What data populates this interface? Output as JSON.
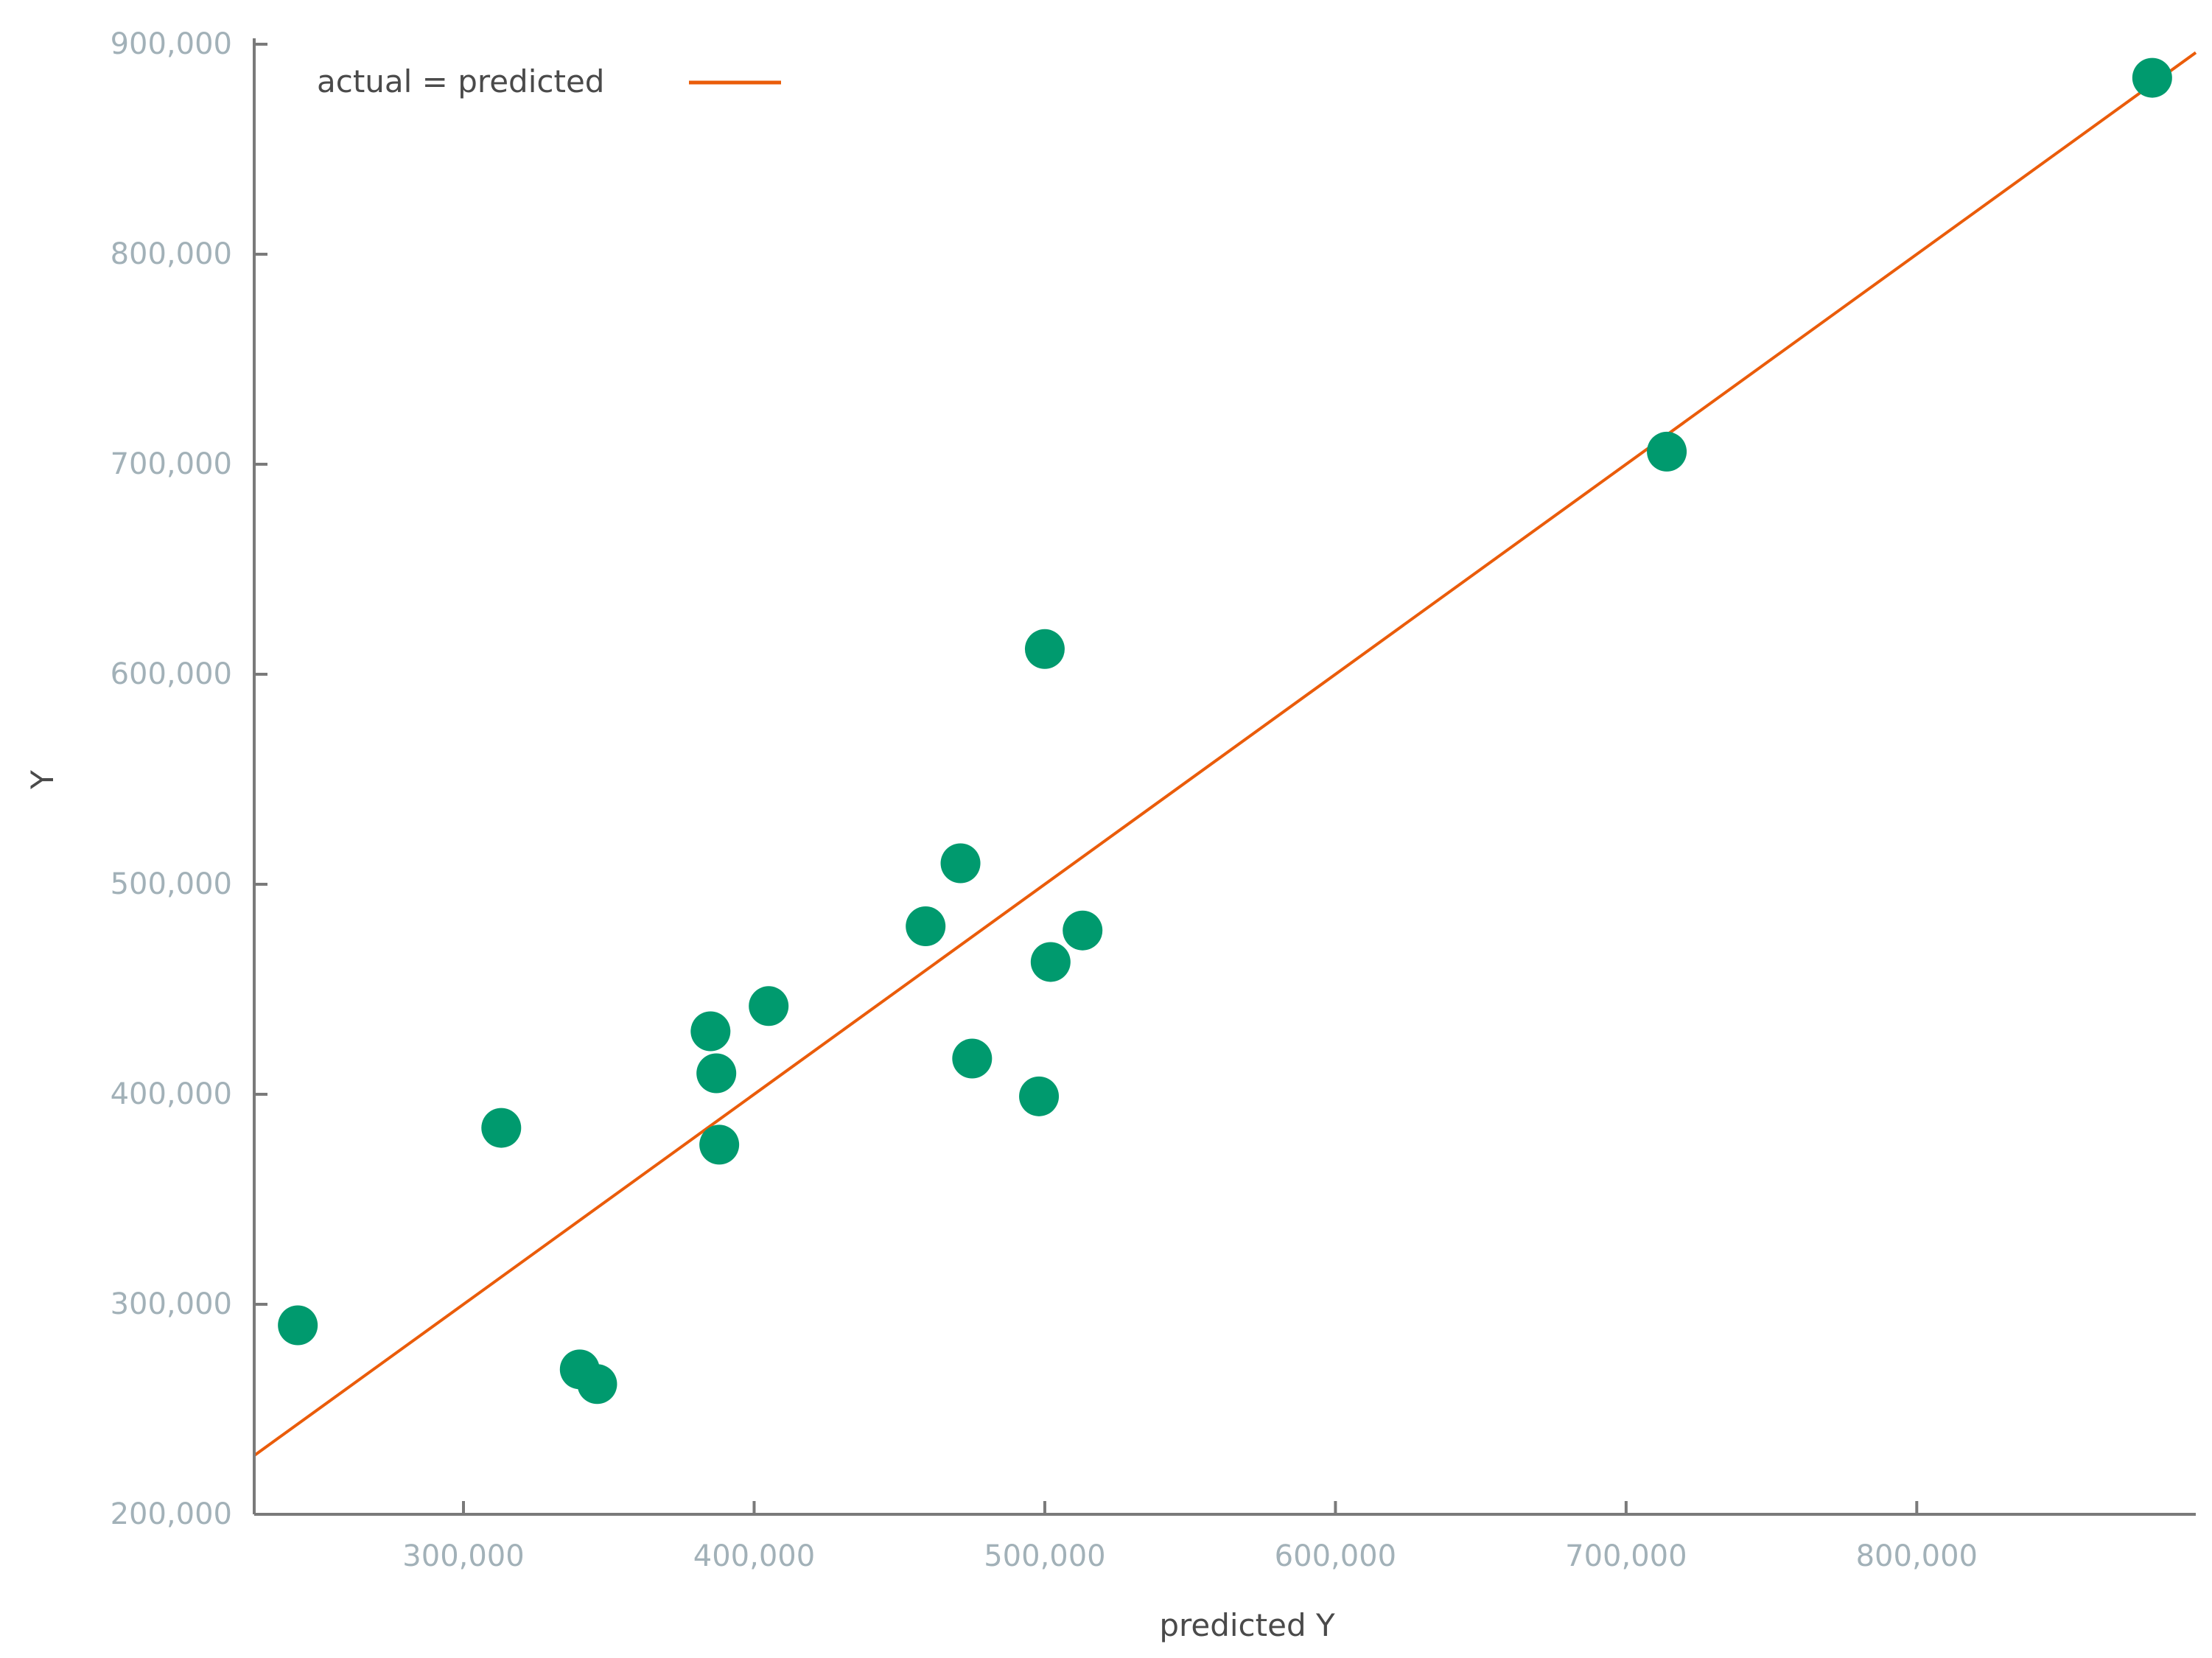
{
  "chart_data": {
    "type": "scatter",
    "title": "",
    "xlabel": "predicted Y",
    "ylabel": "Y",
    "xlim": [
      228000,
      896000
    ],
    "ylim": [
      200000,
      900000
    ],
    "x_ticks": [
      300000,
      400000,
      500000,
      600000,
      700000,
      800000
    ],
    "x_tick_labels": [
      "300,000",
      "400,000",
      "500,000",
      "600,000",
      "700,000",
      "800,000"
    ],
    "y_ticks": [
      200000,
      300000,
      400000,
      500000,
      600000,
      700000,
      800000,
      900000
    ],
    "y_tick_labels": [
      "200,000",
      "300,000",
      "400,000",
      "500,000",
      "600,000",
      "700,000",
      "800,000",
      "900,000"
    ],
    "grid": false,
    "legend": {
      "position": "top-left",
      "entries": [
        "actual = predicted"
      ]
    },
    "colors": {
      "points": "#009a6e",
      "line": "#ea5c0a",
      "axis": "#7a7a7a"
    },
    "series": [
      {
        "kind": "points",
        "x": [
          243000,
          313000,
          340000,
          346000,
          385000,
          387000,
          388000,
          405000,
          459000,
          471000,
          475000,
          498000,
          500000,
          502000,
          513000,
          714000,
          881000
        ],
        "y": [
          290000,
          384000,
          269000,
          262000,
          430000,
          410000,
          376000,
          442000,
          480000,
          510000,
          417000,
          399000,
          612000,
          463000,
          478000,
          706000,
          884000
        ]
      },
      {
        "kind": "line",
        "name": "actual = predicted",
        "x": [
          228000,
          896000
        ],
        "y": [
          228000,
          896000
        ]
      }
    ]
  }
}
